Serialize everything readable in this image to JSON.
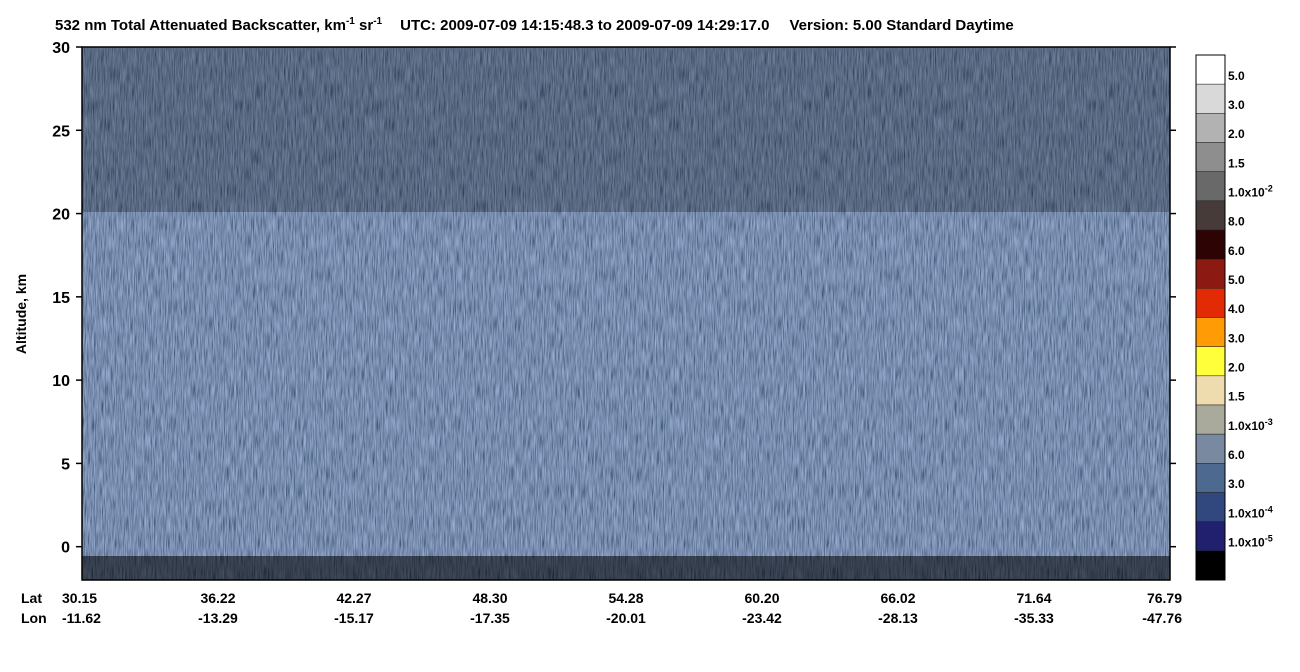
{
  "chart_data": {
    "type": "curtain",
    "title": {
      "main": "532 nm Total Attenuated Backscatter, km",
      "sup1": "-1",
      "unit2": "sr",
      "sup2": "-1",
      "time": "UTC:  2009-07-09 14:15:48.3  to  2009-07-09 14:29:17.0",
      "version": "Version: 5.00  Standard  Daytime"
    },
    "y_label": "Altitude, km",
    "ylim": [
      -2,
      30
    ],
    "yticks": [
      0,
      5,
      10,
      15,
      20,
      25,
      30
    ],
    "x_rows": {
      "lat_title": "Lat",
      "lon_title": "Lon",
      "lat": [
        "30.15",
        "36.22",
        "42.27",
        "48.30",
        "54.28",
        "60.20",
        "66.02",
        "71.64",
        "76.79"
      ],
      "lon": [
        "-11.62",
        "-13.29",
        "-15.17",
        "-17.35",
        "-20.01",
        "-23.42",
        "-28.13",
        "-35.33",
        "-47.76"
      ]
    },
    "colorbar": [
      {
        "color": "#ffffff",
        "label": "5.0"
      },
      {
        "color": "#d9d9d9",
        "label": "3.0"
      },
      {
        "color": "#b2b2b2",
        "label": "2.0"
      },
      {
        "color": "#8e8e8e",
        "label": "1.5"
      },
      {
        "color": "#696969",
        "label": "1.0x10",
        "sup": "-2"
      },
      {
        "color": "#463b39",
        "label": "8.0"
      },
      {
        "color": "#2e0303",
        "label": "6.0"
      },
      {
        "color": "#8c1a12",
        "label": "5.0"
      },
      {
        "color": "#e22a05",
        "label": "4.0"
      },
      {
        "color": "#ff9b05",
        "label": "3.0"
      },
      {
        "color": "#ffff3a",
        "label": "2.0"
      },
      {
        "color": "#eedcae",
        "label": "1.5"
      },
      {
        "color": "#a9aa9c",
        "label": "1.0x10",
        "sup": "-3"
      },
      {
        "color": "#7889a0",
        "label": "6.0"
      },
      {
        "color": "#4d6990",
        "label": "3.0"
      },
      {
        "color": "#30487e",
        "label": "1.0x10",
        "sup": "-4"
      },
      {
        "color": "#20206e",
        "label": "1.0x10",
        "sup": "-5"
      },
      {
        "color": "#000000"
      }
    ]
  }
}
